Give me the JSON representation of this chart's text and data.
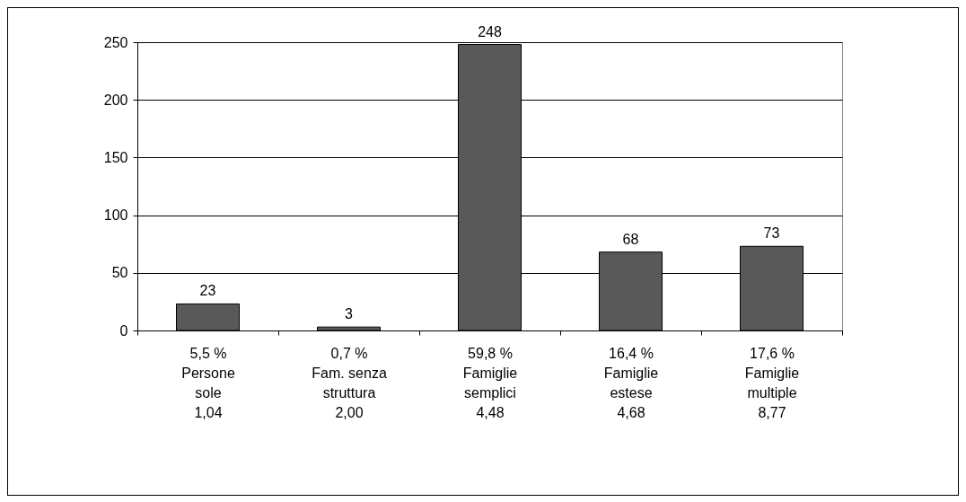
{
  "chart_data": {
    "type": "bar",
    "categories": [
      "5,5 %\nPersone\nsole\n1,04",
      "0,7 %\nFam. senza\nstruttura\n2,00",
      "59,8 %\nFamiglie\nsemplici\n4,48",
      "16,4 %\nFamiglie\nestese\n4,68",
      "17,6 %\nFamiglie\nmultiple\n8,77"
    ],
    "values": [
      23,
      3,
      248,
      68,
      73
    ],
    "color": "#595959",
    "ylim": [
      0,
      250
    ],
    "yticks": [
      0,
      50,
      100,
      150,
      200,
      250
    ],
    "grid": "y",
    "data_labels": true
  }
}
